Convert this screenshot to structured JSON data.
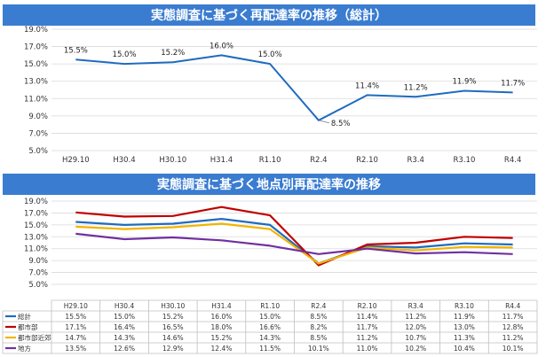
{
  "titles": {
    "chart1": "実態調査に基づく再配達率の推移（総計）",
    "chart2": "実態調査に基づく地点別再配達率の推移"
  },
  "colors": {
    "header": "#3a7cd0",
    "総計": "#1f6bbf",
    "都市部": "#c00000",
    "都市部近郊": "#f0b400",
    "地方": "#7030a0"
  },
  "chart_data": [
    {
      "type": "line",
      "title": "実態調査に基づく再配達率の推移（総計）",
      "categories": [
        "H29.10",
        "H30.4",
        "H30.10",
        "H31.4",
        "R1.10",
        "R2.4",
        "R2.10",
        "R3.4",
        "R3.10",
        "R4.4"
      ],
      "y_ticks": [
        "19.0%",
        "17.0%",
        "15.0%",
        "13.0%",
        "11.0%",
        "9.0%",
        "7.0%",
        "5.0%"
      ],
      "ylim": [
        5,
        19
      ],
      "grid": true,
      "series": [
        {
          "name": "総計",
          "values": [
            15.5,
            15.0,
            15.2,
            16.0,
            15.0,
            8.5,
            11.4,
            11.2,
            11.9,
            11.7
          ],
          "labels": [
            "15.5%",
            "15.0%",
            "15.2%",
            "16.0%",
            "15.0%",
            "8.5%",
            "11.4%",
            "11.2%",
            "11.9%",
            "11.7%"
          ]
        }
      ]
    },
    {
      "type": "line",
      "title": "実態調査に基づく地点別再配達率の推移",
      "categories": [
        "H29.10",
        "H30.4",
        "H30.10",
        "H31.4",
        "R1.10",
        "R2.4",
        "R2.10",
        "R3.4",
        "R3.10",
        "R4.4"
      ],
      "y_ticks": [
        "19.0%",
        "17.0%",
        "15.0%",
        "13.0%",
        "11.0%",
        "9.0%",
        "7.0%",
        "5.0%"
      ],
      "ylim": [
        5,
        19
      ],
      "grid": true,
      "legend": "data-table-bottom",
      "series": [
        {
          "name": "総計",
          "values": [
            15.5,
            15.0,
            15.2,
            16.0,
            15.0,
            8.5,
            11.4,
            11.2,
            11.9,
            11.7
          ],
          "labels": [
            "15.5%",
            "15.0%",
            "15.2%",
            "16.0%",
            "15.0%",
            "8.5%",
            "11.4%",
            "11.2%",
            "11.9%",
            "11.7%"
          ]
        },
        {
          "name": "都市部",
          "values": [
            17.1,
            16.4,
            16.5,
            18.0,
            16.6,
            8.2,
            11.7,
            12.0,
            13.0,
            12.8
          ],
          "labels": [
            "17.1%",
            "16.4%",
            "16.5%",
            "18.0%",
            "16.6%",
            "8.2%",
            "11.7%",
            "12.0%",
            "13.0%",
            "12.8%"
          ]
        },
        {
          "name": "都市部近郊",
          "values": [
            14.7,
            14.3,
            14.6,
            15.2,
            14.3,
            8.5,
            11.2,
            10.7,
            11.3,
            11.2
          ],
          "labels": [
            "14.7%",
            "14.3%",
            "14.6%",
            "15.2%",
            "14.3%",
            "8.5%",
            "11.2%",
            "10.7%",
            "11.3%",
            "11.2%"
          ]
        },
        {
          "name": "地方",
          "values": [
            13.5,
            12.6,
            12.9,
            12.4,
            11.5,
            10.1,
            11.0,
            10.2,
            10.4,
            10.1
          ],
          "labels": [
            "13.5%",
            "12.6%",
            "12.9%",
            "12.4%",
            "11.5%",
            "10.1%",
            "11.0%",
            "10.2%",
            "10.4%",
            "10.1%"
          ]
        }
      ]
    }
  ]
}
